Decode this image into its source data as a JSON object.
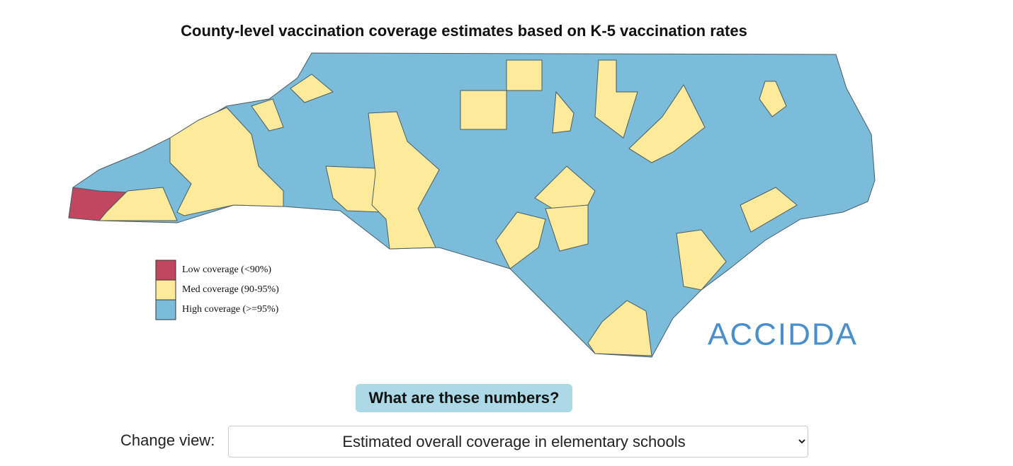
{
  "title": "County-level vaccination coverage estimates based on K-5 vaccination rates",
  "legend": [
    {
      "label": "Low coverage (<90%)",
      "color": "#c0475f"
    },
    {
      "label": "Med coverage (90-95%)",
      "color": "#fdeb9b"
    },
    {
      "label": "High coverage (>=95%)",
      "color": "#7bbcda"
    }
  ],
  "logo": "ACCIDDA",
  "button": "What are these numbers?",
  "view_selector": {
    "label": "Change view:",
    "selected": "Estimated overall coverage in elementary schools"
  }
}
